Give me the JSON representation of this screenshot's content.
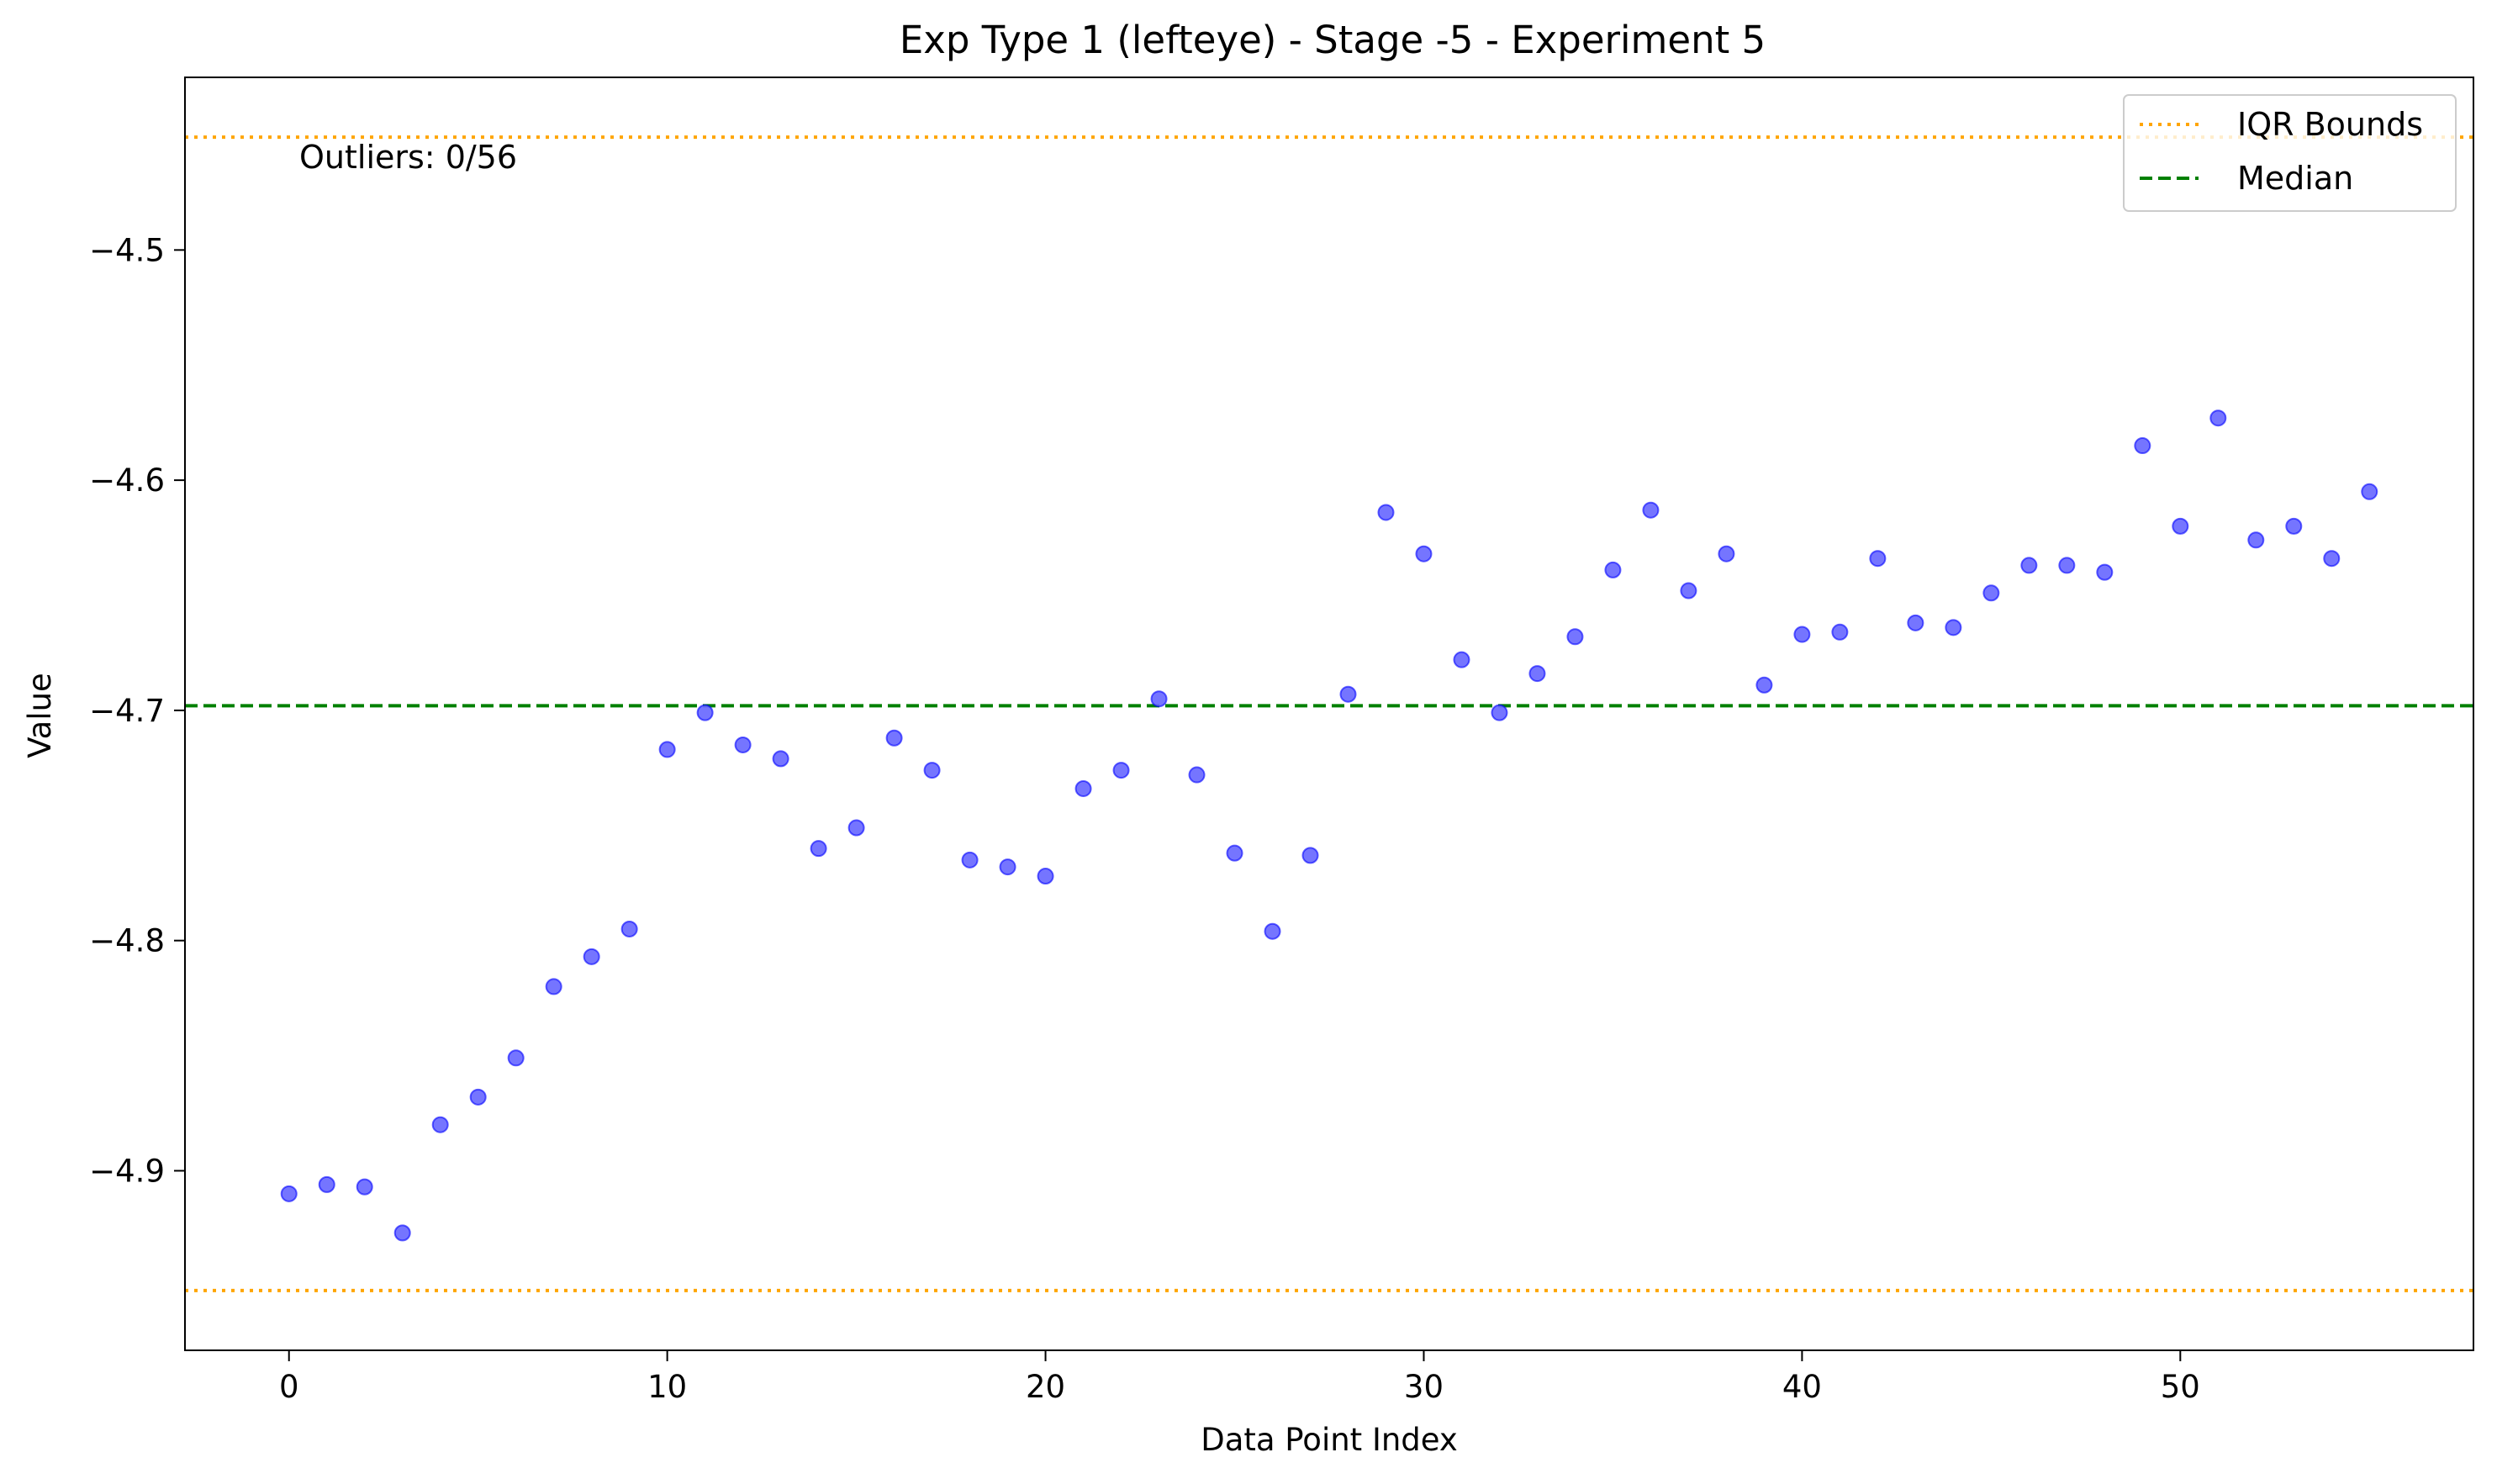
{
  "chart_data": {
    "type": "scatter",
    "title": "Exp Type 1 (lefteye) - Stage -5 - Experiment 5",
    "xlabel": "Data Point Index",
    "ylabel": "Value",
    "xlim": [
      -2.75,
      57.75
    ],
    "ylim": [
      -4.978,
      -4.425
    ],
    "xticks": [
      0,
      10,
      20,
      30,
      40,
      50
    ],
    "yticks": [
      -4.9,
      -4.8,
      -4.7,
      -4.6,
      -4.5
    ],
    "ytick_labels": [
      "−4.9",
      "−4.8",
      "−4.7",
      "−4.6",
      "−4.5"
    ],
    "grid": false,
    "legend_position": "top-right",
    "annotation": "Outliers: 0/56",
    "colors": {
      "points": "#6666ff",
      "points_edge": "#0000ff",
      "iqr": "#ffa500",
      "median": "#008000"
    },
    "iqr_bounds": [
      -4.451,
      -4.952
    ],
    "median": -4.698,
    "series": [
      {
        "name": "",
        "x": [
          0,
          1,
          2,
          3,
          4,
          5,
          6,
          7,
          8,
          9,
          10,
          11,
          12,
          13,
          14,
          15,
          16,
          17,
          18,
          19,
          20,
          21,
          22,
          23,
          24,
          25,
          26,
          27,
          28,
          29,
          30,
          31,
          32,
          33,
          34,
          35,
          36,
          37,
          38,
          39,
          40,
          41,
          42,
          43,
          44,
          45,
          46,
          47,
          48,
          49,
          50,
          51,
          52,
          53,
          54,
          55
        ],
        "y": [
          -4.91,
          -4.906,
          -4.907,
          -4.927,
          -4.88,
          -4.868,
          -4.851,
          -4.82,
          -4.807,
          -4.795,
          -4.717,
          -4.701,
          -4.715,
          -4.721,
          -4.76,
          -4.751,
          -4.712,
          -4.726,
          -4.765,
          -4.768,
          -4.772,
          -4.734,
          -4.726,
          -4.695,
          -4.728,
          -4.762,
          -4.796,
          -4.763,
          -4.693,
          -4.614,
          -4.632,
          -4.678,
          -4.701,
          -4.684,
          -4.668,
          -4.639,
          -4.613,
          -4.648,
          -4.632,
          -4.689,
          -4.667,
          -4.666,
          -4.634,
          -4.662,
          -4.664,
          -4.649,
          -4.637,
          -4.637,
          -4.64,
          -4.585,
          -4.62,
          -4.573,
          -4.626,
          -4.62,
          -4.634,
          -4.605
        ]
      }
    ],
    "legend": [
      {
        "label": "IQR Bounds",
        "style": "dotted"
      },
      {
        "label": "Median",
        "style": "dashed"
      }
    ]
  }
}
